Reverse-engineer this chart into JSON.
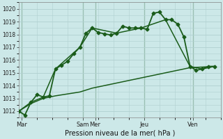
{
  "background_color": "#cce8e8",
  "grid_color": "#b0d0d0",
  "line_color": "#1a5c1a",
  "title": "Pression niveau de la mer( hPa )",
  "ylim": [
    1011.5,
    1020.5
  ],
  "yticks": [
    1012,
    1013,
    1014,
    1015,
    1016,
    1017,
    1018,
    1019,
    1020
  ],
  "day_labels": [
    "Mar",
    "Sam",
    "Mer",
    "Jeu",
    "Ven"
  ],
  "day_positions": [
    0.5,
    10.5,
    12.5,
    20.5,
    28.5
  ],
  "vline_positions": [
    0.5,
    10.5,
    12.5,
    20.5,
    28.5
  ],
  "xlim": [
    0,
    33
  ],
  "series": [
    {
      "x": [
        0,
        1,
        2,
        3,
        4,
        5,
        6,
        7,
        8,
        9,
        10,
        11,
        12,
        13,
        14,
        15,
        16,
        17,
        18,
        19,
        20,
        21,
        22,
        23,
        24,
        25,
        26,
        27,
        28,
        29,
        30,
        31,
        32
      ],
      "y": [
        1012.0,
        1011.7,
        1012.7,
        1013.3,
        1013.1,
        1013.2,
        1015.3,
        1015.6,
        1015.9,
        1016.5,
        1017.0,
        1018.1,
        1018.5,
        1018.15,
        1018.05,
        1017.95,
        1018.1,
        1018.65,
        1018.5,
        1018.5,
        1018.5,
        1018.4,
        1019.65,
        1019.75,
        1019.15,
        1019.15,
        1018.8,
        1017.8,
        1015.5,
        1015.2,
        1015.3,
        1015.5,
        1015.5
      ],
      "marker": "D",
      "markersize": 2.5,
      "linewidth": 1.3,
      "zorder": 4
    },
    {
      "x": [
        0,
        2,
        4,
        6,
        10,
        12,
        16,
        20,
        24,
        28,
        30,
        32
      ],
      "y": [
        1012.0,
        1012.7,
        1013.1,
        1015.3,
        1017.0,
        1018.5,
        1018.1,
        1018.5,
        1019.15,
        1015.5,
        1015.3,
        1015.5
      ],
      "marker": null,
      "linewidth": 1.1,
      "zorder": 3
    },
    {
      "x": [
        0,
        2,
        4,
        6,
        10,
        12,
        16,
        20,
        24,
        28,
        30,
        32
      ],
      "y": [
        1012.0,
        1012.6,
        1013.0,
        1013.2,
        1013.5,
        1013.8,
        1014.2,
        1014.6,
        1015.0,
        1015.4,
        1015.45,
        1015.5
      ],
      "marker": null,
      "linewidth": 1.1,
      "zorder": 3
    }
  ]
}
